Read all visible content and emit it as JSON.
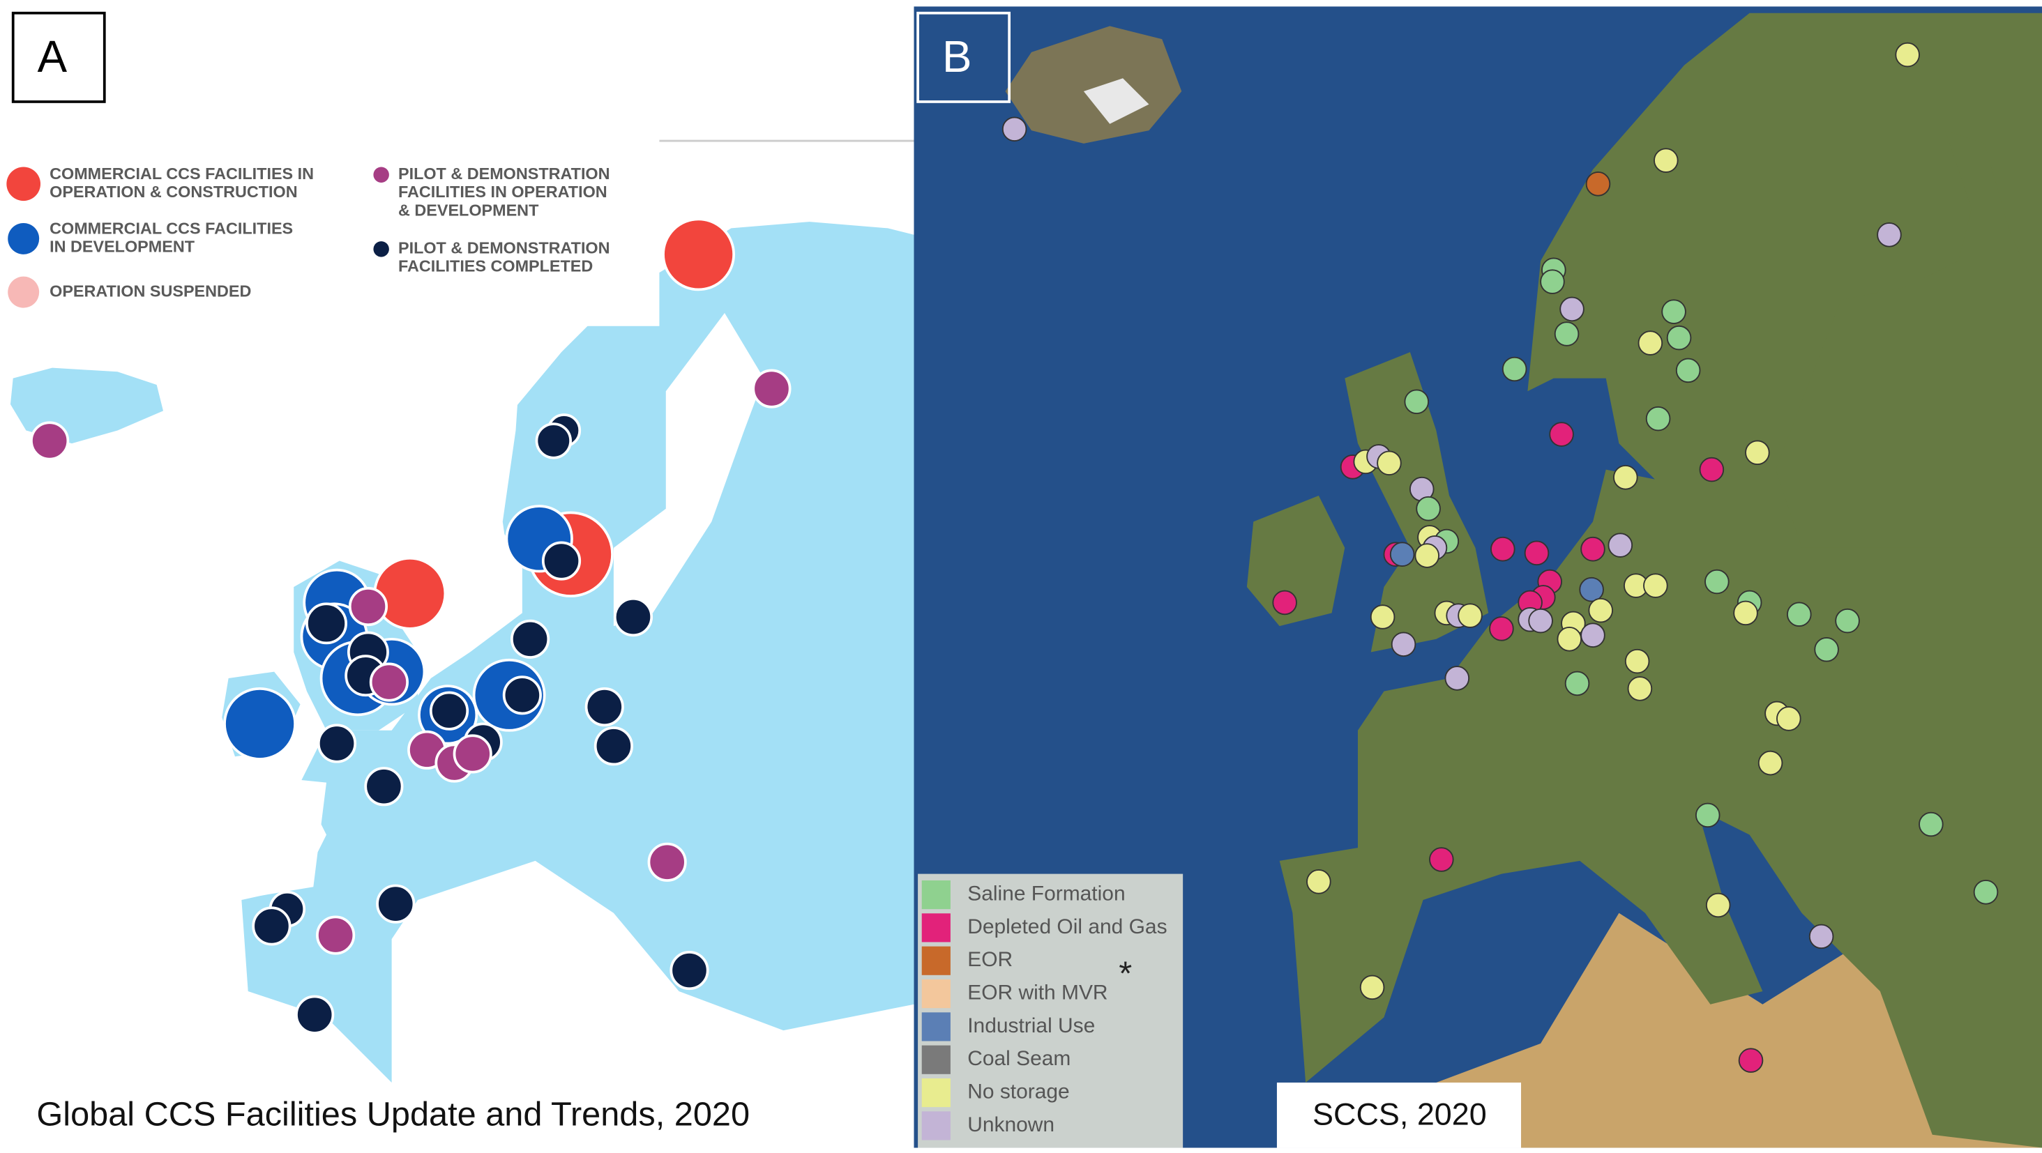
{
  "panel_a": {
    "label": "A",
    "legend": [
      {
        "lines": [
          "COMMERCIAL CCS FACILITIES IN",
          "OPERATION & CONSTRUCTION"
        ],
        "color": "#f2453d"
      },
      {
        "lines": [
          "COMMERCIAL CCS FACILITIES",
          "IN DEVELOPMENT"
        ],
        "color": "#0f5cbf"
      },
      {
        "lines": [
          "OPERATION SUSPENDED"
        ],
        "color": "#f7b8b6"
      },
      {
        "lines": [
          "PILOT & DEMONSTRATION",
          "FACILITIES IN OPERATION",
          "& DEVELOPMENT"
        ],
        "color": "#a63d84"
      },
      {
        "lines": [
          "PILOT & DEMONSTRATION",
          "FACILITIES COMPLETED"
        ],
        "color": "#0b1f45"
      }
    ],
    "caption": "Global CCS Facilities Update and Trends, 2020"
  },
  "panel_b": {
    "label": "B",
    "legend": [
      {
        "text": "Saline Formation",
        "color": "#8fd18f"
      },
      {
        "text": "Depleted Oil and Gas",
        "color": "#e2227a"
      },
      {
        "text": "EOR",
        "color": "#c8692a"
      },
      {
        "text": "EOR with MVR",
        "color": "#f3c79c"
      },
      {
        "text": "Industrial Use",
        "color": "#5b7fb5"
      },
      {
        "text": "Coal Seam",
        "color": "#7a7a7a"
      },
      {
        "text": "No storage",
        "color": "#e8ec8f"
      },
      {
        "text": "Unknown",
        "color": "#c3b4d6"
      }
    ],
    "note": "*",
    "caption": "SCCS, 2020"
  }
}
